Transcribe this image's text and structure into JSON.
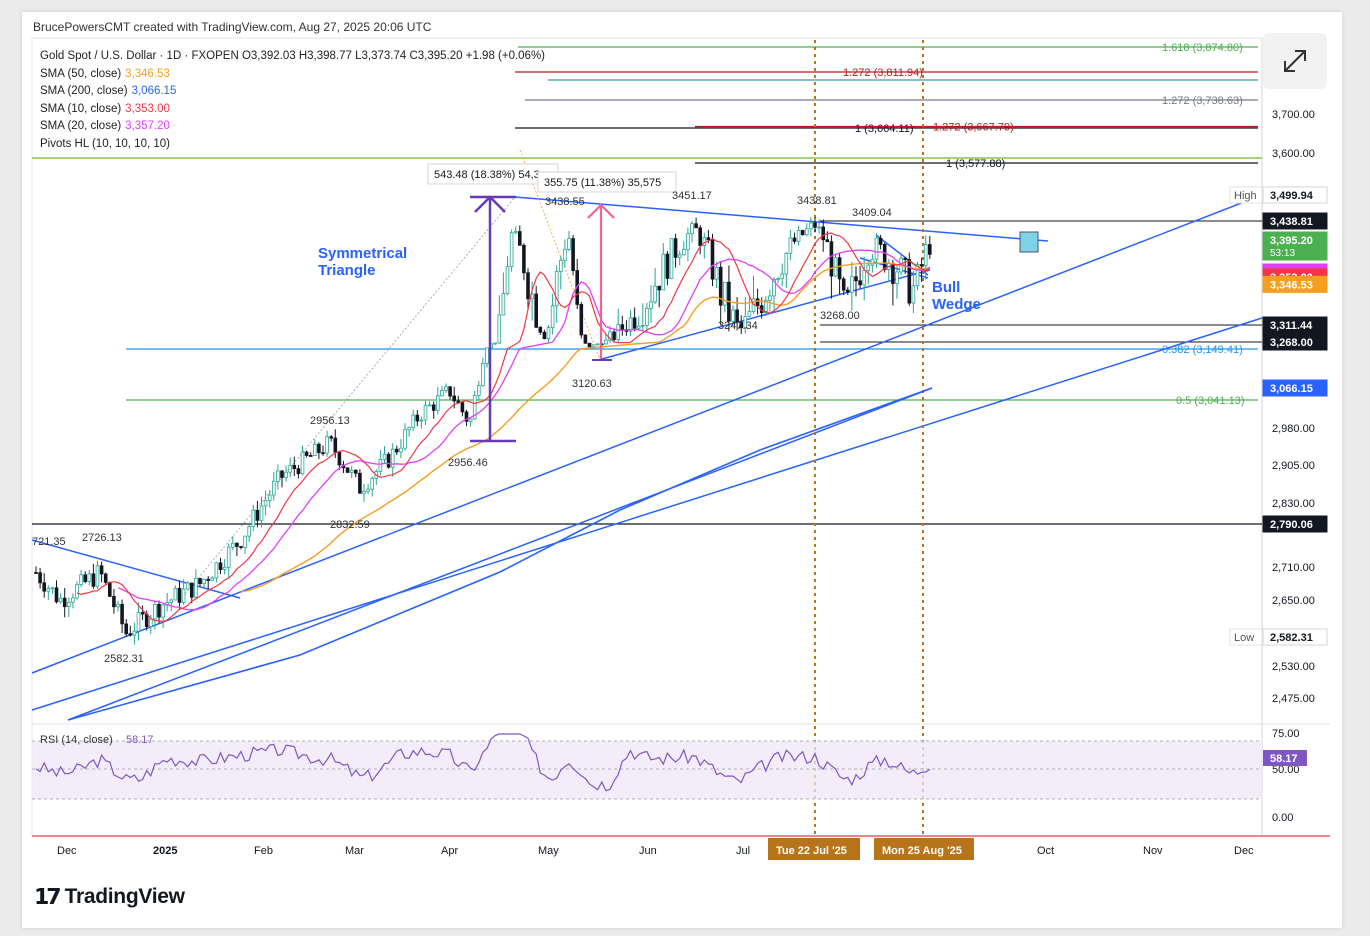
{
  "credit": "BrucePowersCMT created with TradingView.com, Aug 27, 2025 20:06 UTC",
  "legend": {
    "ohlc": "Gold Spot / U.S. Dollar · 1D · FXOPEN  O3,392.03  H3,398.77  L3,373.74  C3,395.20  +1.98 (+0.06%)",
    "indicators": [
      {
        "label": "SMA (50, close)",
        "value": "3,346.53",
        "color": "#f59f1e"
      },
      {
        "label": "SMA (200, close)",
        "value": "3,066.15",
        "color": "#2962ff"
      },
      {
        "label": "SMA (10, close)",
        "value": "3,353.00",
        "color": "#f23645"
      },
      {
        "label": "SMA (20, close)",
        "value": "3,357.20",
        "color": "#e040fb"
      },
      {
        "label": "Pivots HL (10, 10, 10, 10)",
        "value": "",
        "color": "#222222"
      }
    ]
  },
  "logo_text": "TradingView",
  "chart_data": {
    "type": "candlestick",
    "y_ticks": [
      "3,700.00",
      "3,600.00",
      "2,980.00",
      "2,905.00",
      "2,830.00",
      "2,710.00",
      "2,650.00",
      "2,530.00",
      "2,475.00"
    ],
    "x_ticks": [
      "Dec",
      "2025",
      "Feb",
      "Mar",
      "Apr",
      "May",
      "Jun",
      "Jul",
      "Oct",
      "Nov",
      "Dec"
    ],
    "date_flags": [
      "Tue 22 Jul '25",
      "Mon 25 Aug '25"
    ],
    "price_tags": [
      {
        "text": "3,499.94",
        "price": 3499.94,
        "bg": "#ffffff",
        "fg": "#131722",
        "side": "High"
      },
      {
        "text": "3,438.81",
        "price": 3438.81,
        "bg": "#131722",
        "fg": "#ffffff"
      },
      {
        "text": "3,395.20",
        "sub": "53:13",
        "price": 3395.2,
        "bg": "#4caf50",
        "fg": "#ffffff"
      },
      {
        "text": "3,357.20",
        "price": 3357.2,
        "bg": "#e040fb",
        "fg": "#ffffff"
      },
      {
        "text": "3,353.00",
        "price": 3353.0,
        "bg": "#f23645",
        "fg": "#ffffff"
      },
      {
        "text": "3,346.53",
        "price": 3346.53,
        "bg": "#f59f1e",
        "fg": "#ffffff"
      },
      {
        "text": "3,311.44",
        "price": 3311.44,
        "bg": "#131722",
        "fg": "#ffffff"
      },
      {
        "text": "3,268.00",
        "price": 3268.0,
        "bg": "#131722",
        "fg": "#ffffff"
      },
      {
        "text": "3,066.15",
        "price": 3066.15,
        "bg": "#2962ff",
        "fg": "#ffffff"
      },
      {
        "text": "2,790.06",
        "price": 2790.06,
        "bg": "#131722",
        "fg": "#ffffff"
      },
      {
        "text": "2,582.31",
        "price": 2582.31,
        "bg": "#ffffff",
        "fg": "#131722",
        "side": "Low"
      }
    ],
    "fib_levels": [
      {
        "text": "1.618 (3,874.80)",
        "price": 3874.8,
        "color": "#4caf50"
      },
      {
        "text": "1.272 (3,811.94)",
        "price": 3811.94,
        "color": "#b71c1c"
      },
      {
        "text": "1.272 (3,738.63)",
        "price": 3738.63,
        "color": "#787b86"
      },
      {
        "text": "1 (3,664.11)",
        "price": 3664.11,
        "color": "#131722"
      },
      {
        "text": "1.272 (3,667.79)",
        "price": 3667.79,
        "color": "#b71c1c"
      },
      {
        "text": "1 (3,577.88)",
        "price": 3577.88,
        "color": "#131722"
      },
      {
        "text": "0.382 (3,149.41)",
        "price": 3149.41,
        "color": "#2196f3"
      },
      {
        "text": "0.5 (3,041.13)",
        "price": 3041.13,
        "color": "#4caf50"
      }
    ],
    "pivot_labels": [
      "721.35",
      "2726.13",
      "2582.31",
      "2956.13",
      "2832.59",
      "2956.46",
      "3438.55",
      "3451.17",
      "3120.63",
      "3247.34",
      "3438.81",
      "3409.04",
      "3268.00"
    ],
    "measure_labels": [
      "543.48 (18.38%) 54,3",
      "355.75 (11.38%) 35,575"
    ],
    "annotations": [
      "Symmetrical\nTriangle",
      "Bull\nWedge"
    ],
    "rsi": {
      "label": "RSI (14, close)",
      "value": "58.17",
      "ticks": [
        "75.00",
        "50.00",
        "0.00"
      ]
    }
  }
}
